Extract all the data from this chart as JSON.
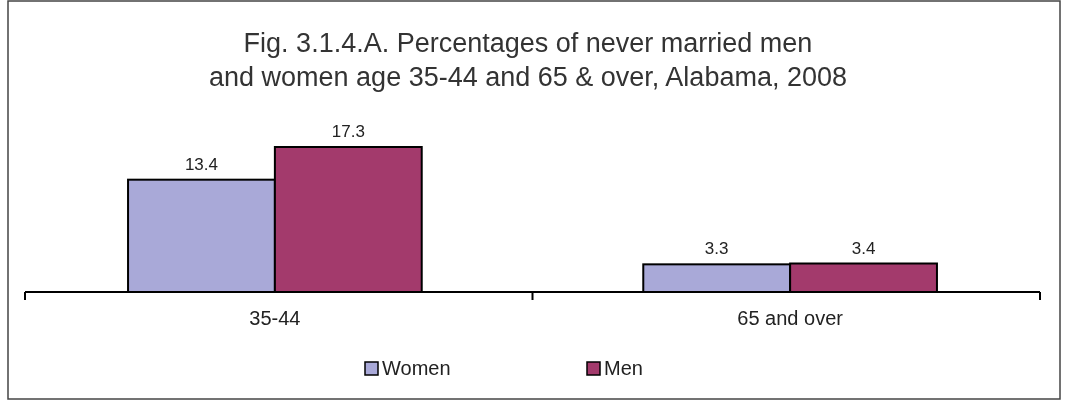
{
  "chart_data": {
    "type": "bar",
    "title": "Fig. 3.1.4.A. Percentages of never married men and women age 35-44 and 65 & over, Alabama, 2008",
    "categories": [
      "35-44",
      "65 and over"
    ],
    "series": [
      {
        "name": "Women",
        "color": "#a9a9d8",
        "values": [
          13.4,
          3.3
        ]
      },
      {
        "name": "Men",
        "color": "#a33a6c",
        "values": [
          17.3,
          3.4
        ]
      }
    ],
    "data_labels": true,
    "legend": "bottom"
  }
}
